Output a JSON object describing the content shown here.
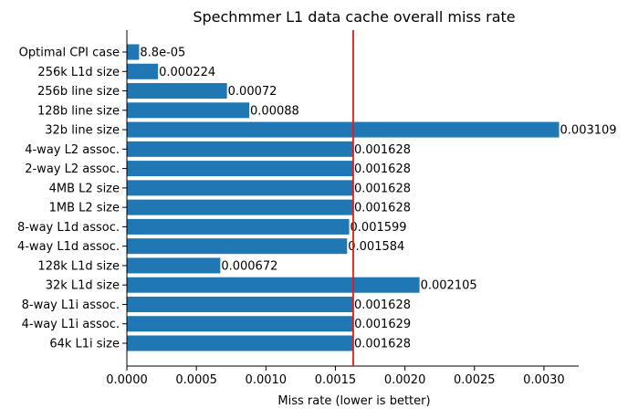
{
  "chart_data": {
    "type": "bar",
    "orientation": "horizontal",
    "title": "Spechmmer L1 data cache overall miss rate",
    "xlabel": "Miss rate (lower is better)",
    "ylabel": "",
    "xlim": [
      0,
      0.00325
    ],
    "grid": false,
    "legend": "none",
    "bar_color": "#1f77b4",
    "reference_line": {
      "value": 0.001628,
      "color": "#e31a1c"
    },
    "x_ticks": [
      0,
      0.0005,
      0.001,
      0.0015,
      0.002,
      0.0025,
      0.003
    ],
    "x_tick_labels": [
      "0.0000",
      "0.0005",
      "0.0010",
      "0.0015",
      "0.0020",
      "0.0025",
      "0.0030"
    ],
    "categories": [
      "Optimal CPI case",
      "256k L1d size",
      "256b line size",
      "128b line size",
      "32b line size",
      "4-way L2 assoc.",
      "2-way L2 assoc.",
      "4MB L2 size",
      "1MB L2 size",
      "8-way L1d assoc.",
      "4-way L1d assoc.",
      "128k L1d size",
      "32k L1d size",
      "8-way L1i assoc.",
      "4-way L1i assoc.",
      "64k L1i size"
    ],
    "values": [
      8.8e-05,
      0.000224,
      0.00072,
      0.00088,
      0.003109,
      0.001628,
      0.001628,
      0.001628,
      0.001628,
      0.001599,
      0.001584,
      0.000672,
      0.002105,
      0.001628,
      0.001629,
      0.001628
    ],
    "value_labels": [
      "8.8e-05",
      "0.000224",
      "0.00072",
      "0.00088",
      "0.003109",
      "0.001628",
      "0.001628",
      "0.001628",
      "0.001628",
      "0.001599",
      "0.001584",
      "0.000672",
      "0.002105",
      "0.001628",
      "0.001629",
      "0.001628"
    ]
  }
}
